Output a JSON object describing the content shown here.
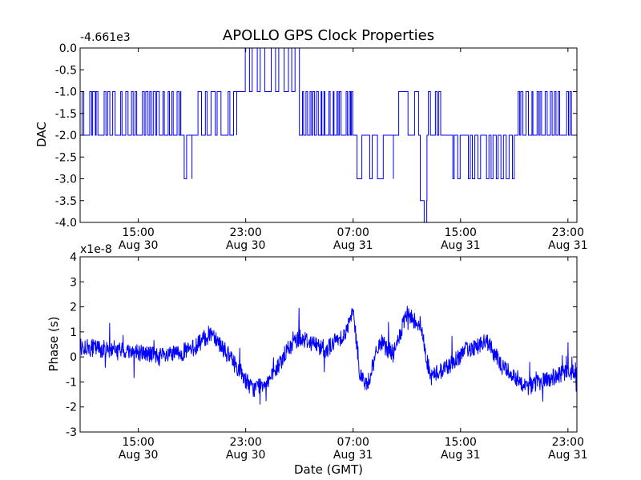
{
  "figure": {
    "title": "APOLLO GPS Clock Properties",
    "line_color": "#0000ff",
    "background": "#ffffff"
  },
  "chart_data": [
    {
      "type": "line",
      "title": "APOLLO GPS Clock Properties",
      "xlabel": "",
      "ylabel": "DAC",
      "y_offset_text": "-4.661e3",
      "ylim": [
        -4.0,
        0.0
      ],
      "yticks": [
        "0.0",
        "-0.5",
        "-1.0",
        "-1.5",
        "-2.0",
        "-2.5",
        "-3.0",
        "-3.5",
        "-4.0"
      ],
      "xlim": [
        "Aug 30 10:40",
        "Aug 31 23:40"
      ],
      "xticks": [
        {
          "time": "15:00",
          "date": "Aug 30"
        },
        {
          "time": "23:00",
          "date": "Aug 30"
        },
        {
          "time": "07:00",
          "date": "Aug 31"
        },
        {
          "time": "15:00",
          "date": "Aug 31"
        },
        {
          "time": "23:00",
          "date": "Aug 31"
        }
      ],
      "grid": false,
      "series": [
        {
          "step": true,
          "segments": [
            {
              "x": [
                "Aug 30 10:40",
                "Aug 30 18:10"
              ],
              "base": -2,
              "alt": -1,
              "switches": 55
            },
            {
              "x": [
                "Aug 30 18:10",
                "Aug 30 19:00"
              ],
              "base": -2,
              "alt": -3,
              "switches": 4
            },
            {
              "x": [
                "Aug 30 19:00",
                "Aug 30 22:20"
              ],
              "base": -2,
              "alt": -1,
              "switches": 14
            },
            {
              "x": [
                "Aug 30 22:20",
                "Aug 31 03:00"
              ],
              "base": -1,
              "alt": 0,
              "switches": 16
            },
            {
              "x": [
                "Aug 31 03:00",
                "Aug 31 07:00"
              ],
              "base": -2,
              "alt": -1,
              "switches": 40
            },
            {
              "x": [
                "Aug 31 07:00",
                "Aug 31 10:00"
              ],
              "base": -2,
              "alt": -3,
              "switches": 8
            },
            {
              "x": [
                "Aug 31 10:00",
                "Aug 31 12:00"
              ],
              "base": -2,
              "alt": -1,
              "switches": 4
            },
            {
              "x": [
                "Aug 31 12:00",
                "Aug 31 12:30"
              ],
              "base": -3.5,
              "alt": -4,
              "switches": 3
            },
            {
              "x": [
                "Aug 31 12:30",
                "Aug 31 14:00"
              ],
              "base": -2,
              "alt": -1,
              "switches": 12
            },
            {
              "x": [
                "Aug 31 14:00",
                "Aug 31 19:00"
              ],
              "base": -2,
              "alt": -3,
              "switches": 26
            },
            {
              "x": [
                "Aug 31 19:00",
                "Aug 31 23:40"
              ],
              "base": -2,
              "alt": -1,
              "switches": 36
            }
          ]
        }
      ]
    },
    {
      "type": "line",
      "xlabel": "Date (GMT)",
      "ylabel": "Phase (s)",
      "y_offset_text": "x1e-8",
      "ylim": [
        -3,
        4
      ],
      "yticks": [
        "4",
        "3",
        "2",
        "1",
        "0",
        "-1",
        "-2",
        "-3"
      ],
      "xlim": [
        "Aug 30 10:40",
        "Aug 31 23:40"
      ],
      "xticks": [
        {
          "time": "15:00",
          "date": "Aug 30"
        },
        {
          "time": "23:00",
          "date": "Aug 30"
        },
        {
          "time": "07:00",
          "date": "Aug 31"
        },
        {
          "time": "15:00",
          "date": "Aug 31"
        },
        {
          "time": "23:00",
          "date": "Aug 31"
        }
      ],
      "grid": false,
      "series": [
        {
          "noise_amplitude": 0.35,
          "spike_amplitude": 1.0,
          "trend_points": [
            {
              "x": "Aug 30 10:40",
              "y": 0.4
            },
            {
              "x": "Aug 30 13:00",
              "y": 0.3
            },
            {
              "x": "Aug 30 15:00",
              "y": 0.2
            },
            {
              "x": "Aug 30 17:00",
              "y": 0.0
            },
            {
              "x": "Aug 30 19:00",
              "y": 0.3
            },
            {
              "x": "Aug 30 20:30",
              "y": 1.0
            },
            {
              "x": "Aug 30 21:30",
              "y": 0.2
            },
            {
              "x": "Aug 30 22:30",
              "y": -0.5
            },
            {
              "x": "Aug 30 23:30",
              "y": -1.3
            },
            {
              "x": "Aug 31 01:00",
              "y": -0.8
            },
            {
              "x": "Aug 31 02:00",
              "y": 0.2
            },
            {
              "x": "Aug 31 03:00",
              "y": 0.8
            },
            {
              "x": "Aug 31 05:00",
              "y": 0.3
            },
            {
              "x": "Aug 31 06:30",
              "y": 1.0
            },
            {
              "x": "Aug 31 07:00",
              "y": 1.8
            },
            {
              "x": "Aug 31 07:30",
              "y": -0.6
            },
            {
              "x": "Aug 31 08:00",
              "y": -1.2
            },
            {
              "x": "Aug 31 09:00",
              "y": 0.6
            },
            {
              "x": "Aug 31 10:00",
              "y": 0.1
            },
            {
              "x": "Aug 31 11:00",
              "y": 1.7
            },
            {
              "x": "Aug 31 12:00",
              "y": 1.3
            },
            {
              "x": "Aug 31 12:45",
              "y": -0.8
            },
            {
              "x": "Aug 31 14:00",
              "y": -0.4
            },
            {
              "x": "Aug 31 15:30",
              "y": 0.3
            },
            {
              "x": "Aug 31 17:00",
              "y": 0.6
            },
            {
              "x": "Aug 31 18:00",
              "y": -0.3
            },
            {
              "x": "Aug 31 20:00",
              "y": -1.2
            },
            {
              "x": "Aug 31 22:00",
              "y": -0.8
            },
            {
              "x": "Aug 31 23:40",
              "y": -0.5
            }
          ]
        }
      ]
    }
  ]
}
